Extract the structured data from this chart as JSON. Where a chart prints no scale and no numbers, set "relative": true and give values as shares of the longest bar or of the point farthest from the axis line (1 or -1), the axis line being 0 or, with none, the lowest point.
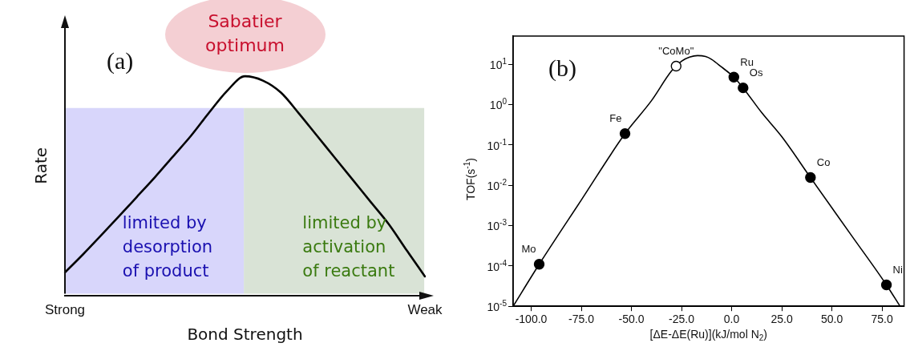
{
  "chart_data": [
    {
      "type": "line",
      "title": "(a)",
      "xlabel": "Bond Strength",
      "ylabel": "Rate",
      "relative": true,
      "tick_labels": "x",
      "grid": false,
      "legend": false,
      "categories": [
        "Strong",
        null,
        null,
        null,
        null,
        null,
        null,
        null,
        null,
        null,
        null,
        null,
        null,
        null,
        null,
        null,
        null,
        null,
        null,
        null,
        "Weak"
      ],
      "series": [
        {
          "color": "#000000",
          "values": [
            0.098,
            0.181,
            0.268,
            0.356,
            0.446,
            0.536,
            0.631,
            0.726,
            0.832,
            0.932,
            1,
            0.98,
            0.925,
            0.829,
            0.727,
            0.625,
            0.523,
            0.421,
            0.319,
            0.198,
            0.08
          ]
        }
      ],
      "annotations": [
        "Sabatier\noptimum",
        "limited by\ndesorption\nof product",
        "limited by\nactivation\nof reactant"
      ]
    },
    {
      "type": "line",
      "title": "(b)",
      "xlabel": "[ΔE-ΔE(Ru)](kJ/mol N$_{2}$)",
      "ylabel": "TOF(s$^{-1}$)",
      "log": "y",
      "xlim": [
        -109,
        86
      ],
      "ylim": [
        1e-05,
        50
      ],
      "grid": false,
      "legend": false,
      "marker": "circle",
      "xticks": [
        {
          "value": -100,
          "label": "-100.0"
        },
        {
          "value": -75,
          "label": "-75.0"
        },
        {
          "value": -50,
          "label": "-50.0"
        },
        {
          "value": -25,
          "label": "-25.0"
        },
        {
          "value": 0,
          "label": "0.0"
        },
        {
          "value": 25,
          "label": "25.0"
        },
        {
          "value": 50,
          "label": "50.0"
        },
        {
          "value": 75,
          "label": "75.0"
        }
      ],
      "yticks": [
        {
          "value": 1e-05,
          "label": "10$^{-5}$"
        },
        {
          "value": 0.0001,
          "label": "10$^{-4}$"
        },
        {
          "value": 0.001,
          "label": "10$^{-3}$"
        },
        {
          "value": 0.01,
          "label": "10$^{-2}$"
        },
        {
          "value": 0.1,
          "label": "10$^{-1}$"
        },
        {
          "value": 1,
          "label": "10$^{0}$"
        },
        {
          "value": 10,
          "label": "10$^{1}$"
        }
      ],
      "series": [
        {
          "type": "line",
          "marker": "none",
          "color": "#000000",
          "x": [
            -109,
            -96,
            -75,
            -53.2,
            -40,
            -30,
            -25,
            -21,
            -17,
            -13,
            -10,
            -5,
            1.1,
            5.7,
            15,
            25,
            39.3,
            60,
            77.2,
            84
          ],
          "values": [
            1e-05,
            0.00011,
            0.0043,
            0.19,
            1.25,
            6.8,
            11.9,
            15,
            16.4,
            15.5,
            13.2,
            8.5,
            4.8,
            2.6,
            0.63,
            0.16,
            0.0156,
            0.00055,
            3.4e-05,
            1e-05
          ]
        },
        {
          "type": "scatter",
          "color": "#000000",
          "colors": [
            "#000000",
            "#000000",
            "#ffffff",
            "#000000",
            "#000000",
            "#000000",
            "#000000"
          ],
          "x": [
            -96,
            -53.2,
            -27.7,
            1.1,
            5.7,
            39.3,
            77.2
          ],
          "values": [
            0.00011,
            0.19,
            9,
            4.8,
            2.6,
            0.0156,
            3.4e-05
          ]
        }
      ],
      "annotations": [
        {
          "text": "Mo",
          "x": -96,
          "y": 0.00011
        },
        {
          "text": "Fe",
          "x": -53.2,
          "y": 0.19
        },
        {
          "text": "\"CoMo\"",
          "x": -27.7,
          "y": 9
        },
        {
          "text": "Ru",
          "x": 1.1,
          "y": 4.8
        },
        {
          "text": "Os",
          "x": 5.7,
          "y": 2.6
        },
        {
          "text": "Co",
          "x": 39.3,
          "y": 0.0156
        },
        {
          "text": "Ni",
          "x": 77.2,
          "y": 3.4e-05
        }
      ]
    }
  ]
}
